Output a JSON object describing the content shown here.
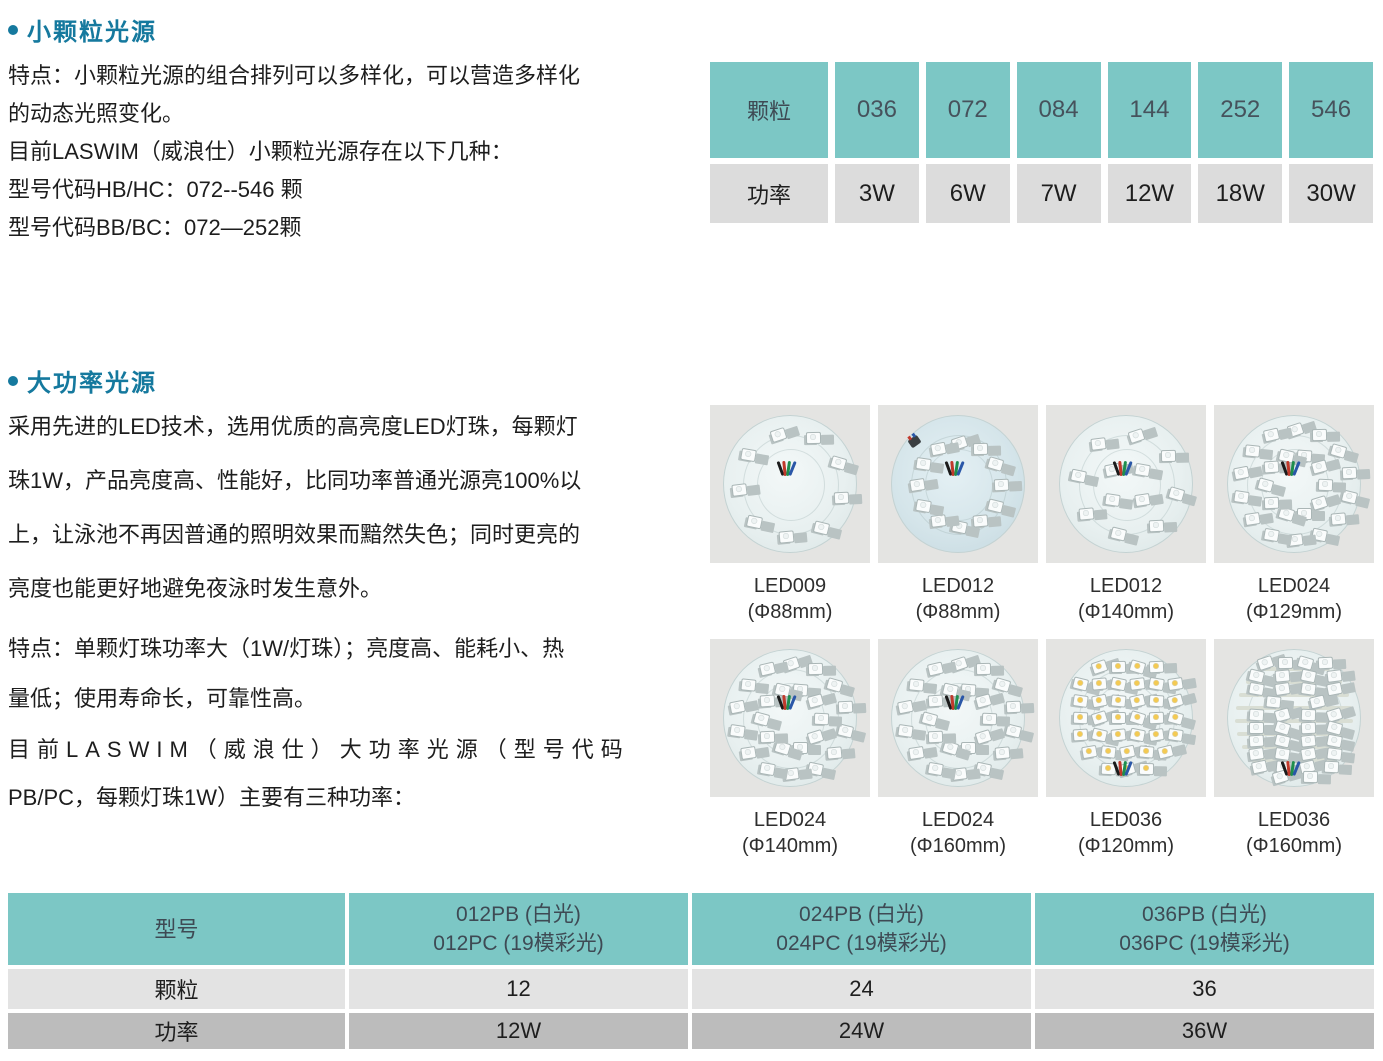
{
  "colors": {
    "heading_teal_blue": "#15799e",
    "table_teal": "#7cc7c5",
    "small_table_gray_row": "#dcdcdc",
    "power_table_light_row": "#e3e3e3",
    "power_table_dark_row": "#bcbcbc",
    "photo_background": "#e4e4e2",
    "body_text": "#1d1d1d"
  },
  "section_small": {
    "heading": "小颗粒光源",
    "body": "特点：小颗粒光源的组合排列可以多样化，可以营造多样化\n的动态光照变化。\n目前LASWIM（威浪仕）小颗粒光源存在以下几种：\n型号代码HB/HC：072--546 颗\n型号代码BB/BC：072—252颗"
  },
  "small_table": {
    "rows": [
      {
        "label": "颗粒",
        "values": [
          "036",
          "072",
          "084",
          "144",
          "252",
          "546"
        ]
      },
      {
        "label": "功率",
        "values": [
          "3W",
          "6W",
          "7W",
          "12W",
          "18W",
          "30W"
        ]
      }
    ]
  },
  "section_power": {
    "heading": "大功率光源",
    "para1": "采用先进的LED技术，选用优质的高亮度LED灯珠，每颗灯\n珠1W，产品亮度高、性能好，比同功率普通光源亮100%以\n上，让泳池不再因普通的照明效果而黯然失色；同时更亮的\n亮度也能更好地避免夜泳时发生意外。",
    "para2": "特点：单颗灯珠功率大（1W/灯珠）；亮度高、能耗小、热\n量低；使用寿命长，可靠性高。",
    "para3_line1": "目前LASWIM（威浪仕）大功率光源（型号代码",
    "para3_line2": "PB/PC，每颗灯珠1W）主要有三种功率："
  },
  "products": [
    {
      "model": "LED009",
      "diameter": "(Φ88mm)",
      "led_count": 9,
      "pattern": "ring9",
      "tone": "cool",
      "board": "white"
    },
    {
      "model": "LED012",
      "diameter": "(Φ88mm)",
      "led_count": 12,
      "pattern": "ring12",
      "tone": "cool",
      "board": "blue"
    },
    {
      "model": "LED012",
      "diameter": "(Φ140mm)",
      "led_count": 12,
      "pattern": "scatter12",
      "tone": "cool",
      "board": "white"
    },
    {
      "model": "LED024",
      "diameter": "(Φ129mm)",
      "led_count": 24,
      "pattern": "ring24",
      "tone": "cool",
      "board": "white"
    },
    {
      "model": "LED024",
      "diameter": "(Φ140mm)",
      "led_count": 24,
      "pattern": "ring24",
      "tone": "cool",
      "board": "white"
    },
    {
      "model": "LED024",
      "diameter": "(Φ160mm)",
      "led_count": 24,
      "pattern": "ring24",
      "tone": "cool",
      "board": "white"
    },
    {
      "model": "LED036",
      "diameter": "(Φ120mm)",
      "led_count": 36,
      "pattern": "grid36",
      "tone": "warm",
      "board": "white"
    },
    {
      "model": "LED036",
      "diameter": "(Φ160mm)",
      "led_count": 36,
      "pattern": "rows36",
      "tone": "cool",
      "board": "white"
    }
  ],
  "power_table": {
    "model_header": "型号",
    "row_labels": [
      "颗粒",
      "功率"
    ],
    "columns": [
      {
        "model_lines": [
          "012PB (白光)",
          "012PC (19模彩光)"
        ],
        "particles": "12",
        "power": "12W"
      },
      {
        "model_lines": [
          "024PB (白光)",
          "024PC (19模彩光)"
        ],
        "particles": "24",
        "power": "24W"
      },
      {
        "model_lines": [
          "036PB (白光)",
          "036PC (19模彩光)"
        ],
        "particles": "36",
        "power": "36W"
      }
    ]
  }
}
